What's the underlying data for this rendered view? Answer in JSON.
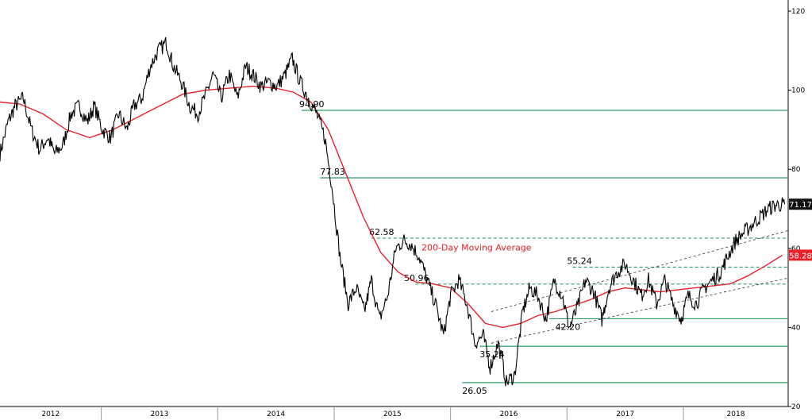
{
  "chart_data": {
    "type": "line",
    "title": "",
    "xlabel": "",
    "ylabel": "",
    "ylim": [
      20,
      120
    ],
    "y_ticks": [
      20,
      40,
      60,
      80,
      100,
      120
    ],
    "x_ticks": [
      {
        "label": "2012",
        "x": 2012.0
      },
      {
        "label": "2013",
        "x": 2013.0
      },
      {
        "label": "2014",
        "x": 2014.0
      },
      {
        "label": "2015",
        "x": 2015.0
      },
      {
        "label": "2016",
        "x": 2016.0
      },
      {
        "label": "2017",
        "x": 2017.0
      },
      {
        "label": "2018",
        "x": 2018.0
      }
    ],
    "xlim": [
      2011.63,
      2018.4
    ],
    "grid": false,
    "colors": {
      "price": "#000000",
      "moving_average": "#e8202a",
      "levels": "#2e9e6a",
      "trend": "#333333"
    },
    "series": [
      {
        "name": "",
        "key": "price",
        "x": [
          2011.63,
          2011.7,
          2011.76,
          2011.83,
          2011.9,
          2011.97,
          2012.04,
          2012.1,
          2012.17,
          2012.24,
          2012.31,
          2012.38,
          2012.44,
          2012.51,
          2012.58,
          2012.65,
          2012.72,
          2012.78,
          2012.85,
          2012.92,
          2012.99,
          2013.06,
          2013.12,
          2013.19,
          2013.26,
          2013.33,
          2013.4,
          2013.46,
          2013.53,
          2013.6,
          2013.67,
          2013.74,
          2013.8,
          2013.87,
          2013.94,
          2014.01,
          2014.08,
          2014.14,
          2014.21,
          2014.28,
          2014.35,
          2014.42,
          2014.48,
          2014.55,
          2014.62,
          2014.69,
          2014.76,
          2014.82,
          2014.89,
          2014.96,
          2015.03,
          2015.1,
          2015.16,
          2015.23,
          2015.3,
          2015.37,
          2015.44,
          2015.5,
          2015.57,
          2015.64,
          2015.71,
          2015.78,
          2015.84,
          2015.91,
          2015.98,
          2016.05,
          2016.12,
          2016.18,
          2016.25,
          2016.32,
          2016.39,
          2016.46,
          2016.52,
          2016.59,
          2016.66,
          2016.73,
          2016.8,
          2016.86,
          2016.93,
          2017.0,
          2017.07,
          2017.14,
          2017.2,
          2017.27,
          2017.34,
          2017.41,
          2017.48,
          2017.54,
          2017.61,
          2017.68,
          2017.75,
          2017.82,
          2017.88,
          2017.95,
          2018.02,
          2018.09,
          2018.16,
          2018.23,
          2018.3,
          2018.37
        ],
        "y": [
          84,
          92,
          96,
          98,
          90,
          85,
          88,
          84,
          86,
          94,
          96,
          92,
          96,
          90,
          88,
          94,
          90,
          96,
          98,
          106,
          110,
          112,
          106,
          102,
          96,
          94,
          99,
          104,
          98,
          104,
          98,
          106,
          104,
          101,
          102,
          101,
          104,
          108,
          102,
          98,
          94,
          88,
          76,
          58,
          46,
          50,
          44,
          52,
          42,
          48,
          60,
          62,
          61,
          58,
          52,
          46,
          38,
          48,
          52,
          46,
          36,
          38,
          30,
          36,
          26,
          28,
          44,
          50,
          48,
          42,
          52,
          48,
          40,
          45,
          52,
          49,
          42,
          50,
          54,
          56,
          52,
          48,
          52,
          46,
          52,
          46,
          42,
          48,
          46,
          50,
          52,
          54,
          58,
          62,
          64,
          66,
          68,
          70,
          71,
          71.17
        ]
      },
      {
        "name": "200-Day Moving Average",
        "key": "moving_average",
        "x": [
          2011.63,
          2011.8,
          2012.0,
          2012.2,
          2012.4,
          2012.6,
          2012.8,
          2013.0,
          2013.2,
          2013.4,
          2013.6,
          2013.8,
          2014.0,
          2014.15,
          2014.3,
          2014.45,
          2014.6,
          2014.75,
          2014.9,
          2015.05,
          2015.2,
          2015.35,
          2015.5,
          2015.65,
          2015.8,
          2015.95,
          2016.1,
          2016.25,
          2016.4,
          2016.55,
          2016.7,
          2016.85,
          2017.0,
          2017.15,
          2017.3,
          2017.45,
          2017.6,
          2017.75,
          2017.9,
          2018.05,
          2018.2,
          2018.35
        ],
        "y": [
          97,
          96.5,
          94,
          90,
          88,
          90,
          93,
          96,
          99,
          100,
          100.5,
          101,
          100.5,
          99.5,
          97,
          90,
          79,
          68,
          59,
          54,
          51.5,
          51,
          50,
          46,
          41,
          40,
          41,
          43,
          44,
          45.5,
          47,
          49,
          50,
          49.5,
          49,
          49.5,
          50,
          50.5,
          51,
          53,
          55.5,
          58.28
        ]
      }
    ],
    "levels": [
      {
        "value": 94.9,
        "label": "94.90",
        "style": "solid"
      },
      {
        "value": 77.83,
        "label": "77.83",
        "style": "solid"
      },
      {
        "value": 62.58,
        "label": "62.58",
        "style": "dashed"
      },
      {
        "value": 55.24,
        "label": "55.24",
        "style": "dashed"
      },
      {
        "value": 50.96,
        "label": "50.96",
        "style": "dashed"
      },
      {
        "value": 42.2,
        "label": "42.20",
        "style": "solid"
      },
      {
        "value": 35.24,
        "label": "35.24",
        "style": "solid"
      },
      {
        "value": 26.05,
        "label": "26.05",
        "style": "solid"
      }
    ],
    "trend_channel": [
      {
        "x": [
          2015.85,
          2018.4
        ],
        "y": [
          44,
          64.5
        ]
      },
      {
        "x": [
          2015.85,
          2018.4
        ],
        "y": [
          36,
          52.5
        ]
      }
    ],
    "annotations": [
      {
        "text": "200-Day Moving Average",
        "color": "#e8202a"
      }
    ],
    "last_value_badges": [
      {
        "text": "71.17",
        "value": 71.17,
        "bg": "#111111",
        "fg": "#ffffff"
      },
      {
        "text": "58.28",
        "value": 58.28,
        "bg": "#e8202a",
        "fg": "#ffffff"
      }
    ]
  }
}
